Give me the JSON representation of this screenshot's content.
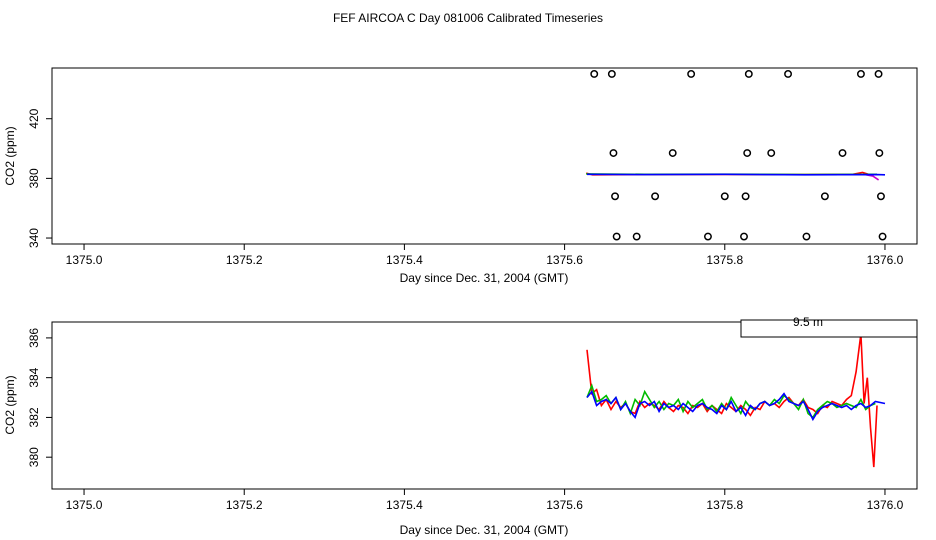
{
  "figure_title": "FEF AIRCOA C  Day 081006  Calibrated Timeseries",
  "legend_label": "9.5 m",
  "colors": {
    "red": "#ff0000",
    "green": "#00bb00",
    "blue": "#0000ff",
    "magenta": "#cc00cc",
    "black": "#000000"
  },
  "chart_data": [
    {
      "type": "scatter",
      "xlabel": "Day since Dec. 31, 2004 (GMT)",
      "ylabel": "CO2 (ppm)",
      "xlim": [
        1374.96,
        1376.04
      ],
      "ylim": [
        336,
        454
      ],
      "x_ticks": [
        "1375.0",
        "1375.2",
        "1375.4",
        "1375.6",
        "1375.8",
        "1376.0"
      ],
      "x_tick_values": [
        1375.0,
        1375.2,
        1375.4,
        1375.6,
        1375.8,
        1376.0
      ],
      "y_ticks": [
        "340",
        "380",
        "420"
      ],
      "y_tick_values": [
        340,
        380,
        420
      ],
      "calibration_points": [
        {
          "x": 1375.637,
          "y": 450
        },
        {
          "x": 1375.659,
          "y": 450
        },
        {
          "x": 1375.758,
          "y": 450
        },
        {
          "x": 1375.83,
          "y": 450
        },
        {
          "x": 1375.879,
          "y": 450
        },
        {
          "x": 1375.97,
          "y": 450
        },
        {
          "x": 1375.992,
          "y": 450
        },
        {
          "x": 1375.661,
          "y": 397
        },
        {
          "x": 1375.735,
          "y": 397
        },
        {
          "x": 1375.828,
          "y": 397
        },
        {
          "x": 1375.858,
          "y": 397
        },
        {
          "x": 1375.947,
          "y": 397
        },
        {
          "x": 1375.993,
          "y": 397
        },
        {
          "x": 1375.663,
          "y": 368
        },
        {
          "x": 1375.713,
          "y": 368
        },
        {
          "x": 1375.8,
          "y": 368
        },
        {
          "x": 1375.826,
          "y": 368
        },
        {
          "x": 1375.925,
          "y": 368
        },
        {
          "x": 1375.995,
          "y": 368
        },
        {
          "x": 1375.665,
          "y": 341
        },
        {
          "x": 1375.69,
          "y": 341
        },
        {
          "x": 1375.779,
          "y": 341
        },
        {
          "x": 1375.824,
          "y": 341
        },
        {
          "x": 1375.902,
          "y": 341
        },
        {
          "x": 1375.997,
          "y": 341
        }
      ],
      "series": [
        {
          "color": "red",
          "x": [
            1375.627,
            1375.635,
            1375.7,
            1375.8,
            1375.9,
            1375.96,
            1375.972,
            1375.985
          ],
          "y": [
            383.5,
            382.4,
            382.5,
            382.6,
            382.5,
            382.7,
            384.0,
            381.8
          ]
        },
        {
          "color": "green",
          "x": [
            1375.627,
            1375.7,
            1375.8,
            1375.9,
            1375.99
          ],
          "y": [
            383.0,
            382.7,
            382.8,
            382.6,
            382.7
          ]
        },
        {
          "color": "magenta",
          "x": [
            1375.975,
            1375.985,
            1375.992
          ],
          "y": [
            382.5,
            381.5,
            379.0
          ]
        },
        {
          "color": "blue",
          "x": [
            1375.628,
            1375.7,
            1375.8,
            1375.9,
            1375.99,
            1376.0
          ],
          "y": [
            382.7,
            382.5,
            382.7,
            382.4,
            382.5,
            382.4
          ]
        }
      ]
    },
    {
      "type": "line",
      "xlabel": "Day since Dec. 31, 2004 (GMT)",
      "ylabel": "CO2 (ppm)",
      "xlim": [
        1374.96,
        1376.04
      ],
      "ylim": [
        378.4,
        386.8
      ],
      "x_ticks": [
        "1375.0",
        "1375.2",
        "1375.4",
        "1375.6",
        "1375.8",
        "1376.0"
      ],
      "x_tick_values": [
        1375.0,
        1375.2,
        1375.4,
        1375.6,
        1375.8,
        1376.0
      ],
      "y_ticks": [
        "380",
        "382",
        "384",
        "386"
      ],
      "y_tick_values": [
        380,
        382,
        384,
        386
      ],
      "series": [
        {
          "color": "red",
          "x": [
            1375.628,
            1375.634,
            1375.64,
            1375.646,
            1375.652,
            1375.658,
            1375.664,
            1375.67,
            1375.676,
            1375.682,
            1375.688,
            1375.694,
            1375.7,
            1375.706,
            1375.712,
            1375.718,
            1375.724,
            1375.73,
            1375.736,
            1375.742,
            1375.748,
            1375.754,
            1375.76,
            1375.766,
            1375.772,
            1375.778,
            1375.784,
            1375.79,
            1375.796,
            1375.802,
            1375.808,
            1375.814,
            1375.82,
            1375.826,
            1375.832,
            1375.838,
            1375.844,
            1375.85,
            1375.856,
            1375.862,
            1375.868,
            1375.874,
            1375.88,
            1375.886,
            1375.892,
            1375.898,
            1375.904,
            1375.91,
            1375.916,
            1375.922,
            1375.928,
            1375.934,
            1375.94,
            1375.946,
            1375.952,
            1375.958,
            1375.964,
            1375.97,
            1375.974,
            1375.978,
            1375.982,
            1375.986,
            1375.99
          ],
          "y": [
            385.4,
            383.2,
            383.4,
            382.6,
            382.9,
            382.4,
            382.8,
            382.5,
            382.7,
            382.3,
            382.2,
            382.8,
            382.5,
            382.7,
            382.6,
            382.4,
            382.8,
            382.5,
            382.3,
            382.6,
            382.5,
            382.2,
            382.6,
            382.5,
            382.7,
            382.3,
            382.6,
            382.4,
            382.2,
            382.7,
            382.5,
            382.3,
            382.6,
            382.4,
            382.1,
            382.5,
            382.4,
            382.8,
            382.6,
            382.7,
            382.5,
            382.8,
            383.0,
            382.7,
            382.6,
            382.9,
            382.5,
            382.4,
            382.2,
            382.6,
            382.5,
            382.8,
            382.7,
            382.6,
            382.9,
            383.1,
            384.3,
            386.2,
            382.7,
            384.0,
            381.5,
            379.5,
            382.6
          ]
        },
        {
          "color": "green",
          "x": [
            1375.628,
            1375.634,
            1375.64,
            1375.646,
            1375.652,
            1375.658,
            1375.664,
            1375.67,
            1375.676,
            1375.682,
            1375.688,
            1375.694,
            1375.7,
            1375.706,
            1375.712,
            1375.718,
            1375.724,
            1375.73,
            1375.736,
            1375.742,
            1375.748,
            1375.754,
            1375.76,
            1375.766,
            1375.772,
            1375.778,
            1375.784,
            1375.79,
            1375.796,
            1375.802,
            1375.808,
            1375.814,
            1375.82,
            1375.826,
            1375.832,
            1375.838,
            1375.844,
            1375.85,
            1375.856,
            1375.862,
            1375.868,
            1375.874,
            1375.88,
            1375.886,
            1375.892,
            1375.898,
            1375.904,
            1375.91,
            1375.916,
            1375.922,
            1375.928,
            1375.934,
            1375.94,
            1375.946,
            1375.952,
            1375.958,
            1375.964,
            1375.97,
            1375.976,
            1375.982,
            1375.988
          ],
          "y": [
            383.0,
            383.6,
            382.8,
            382.9,
            383.1,
            382.7,
            383.0,
            382.4,
            382.8,
            382.2,
            382.9,
            382.6,
            383.3,
            382.9,
            382.5,
            382.8,
            382.4,
            382.7,
            382.6,
            382.9,
            382.3,
            382.8,
            382.5,
            382.7,
            382.9,
            382.4,
            382.6,
            382.3,
            382.7,
            382.4,
            383.0,
            382.6,
            382.2,
            382.8,
            382.5,
            382.4,
            382.7,
            382.8,
            382.6,
            382.9,
            382.7,
            383.1,
            382.9,
            382.7,
            382.4,
            382.9,
            382.2,
            382.0,
            382.4,
            382.6,
            382.8,
            382.7,
            382.5,
            382.6,
            382.7,
            382.6,
            382.5,
            382.9,
            382.4,
            382.6,
            382.7
          ]
        },
        {
          "color": "blue",
          "x": [
            1375.628,
            1375.634,
            1375.64,
            1375.646,
            1375.652,
            1375.658,
            1375.664,
            1375.67,
            1375.676,
            1375.682,
            1375.688,
            1375.694,
            1375.7,
            1375.706,
            1375.712,
            1375.718,
            1375.724,
            1375.73,
            1375.736,
            1375.742,
            1375.748,
            1375.754,
            1375.76,
            1375.766,
            1375.772,
            1375.778,
            1375.784,
            1375.79,
            1375.796,
            1375.802,
            1375.808,
            1375.814,
            1375.82,
            1375.826,
            1375.832,
            1375.838,
            1375.844,
            1375.85,
            1375.856,
            1375.862,
            1375.868,
            1375.874,
            1375.88,
            1375.886,
            1375.892,
            1375.898,
            1375.904,
            1375.91,
            1375.916,
            1375.922,
            1375.928,
            1375.934,
            1375.94,
            1375.946,
            1375.952,
            1375.958,
            1375.964,
            1375.97,
            1375.976,
            1375.982,
            1375.988,
            1376.0
          ],
          "y": [
            383.0,
            383.3,
            382.6,
            382.8,
            382.9,
            382.7,
            383.0,
            382.4,
            382.7,
            382.3,
            382.0,
            382.7,
            382.8,
            382.6,
            382.8,
            382.3,
            382.7,
            382.5,
            382.6,
            382.4,
            382.7,
            382.5,
            382.3,
            382.6,
            382.7,
            382.5,
            382.4,
            382.2,
            382.6,
            382.4,
            382.8,
            382.3,
            382.5,
            382.1,
            382.6,
            382.4,
            382.7,
            382.8,
            382.6,
            382.7,
            382.9,
            383.2,
            382.8,
            382.7,
            382.6,
            382.8,
            382.4,
            381.9,
            382.3,
            382.5,
            382.6,
            382.7,
            382.6,
            382.5,
            382.6,
            382.4,
            382.6,
            382.7,
            382.5,
            382.6,
            382.8,
            382.7
          ]
        }
      ]
    }
  ]
}
